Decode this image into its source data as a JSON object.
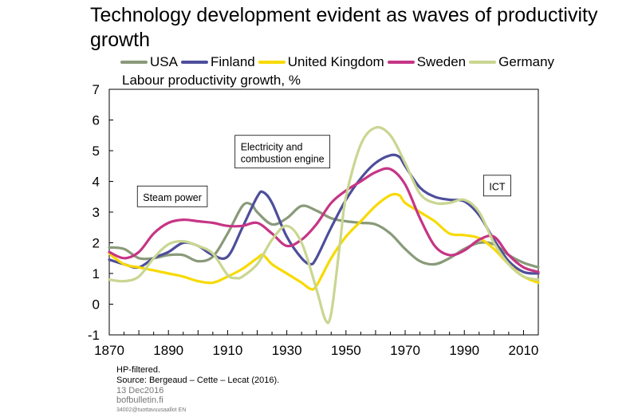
{
  "chart_data": {
    "type": "line",
    "title": "Technology development evident as waves of productivity growth",
    "ylabel": "Labour productivity growth, %",
    "xlabel": "",
    "xlim": [
      1870,
      2015
    ],
    "ylim": [
      -1,
      7
    ],
    "x_ticks": [
      1870,
      1890,
      1910,
      1930,
      1950,
      1970,
      1990,
      2010
    ],
    "y_ticks": [
      -1,
      0,
      1,
      2,
      3,
      4,
      5,
      6,
      7
    ],
    "grid": false,
    "legend_position": "top",
    "series": [
      {
        "name": "USA",
        "color": "#8a9a79",
        "points": [
          [
            1870,
            1.85
          ],
          [
            1875,
            1.8
          ],
          [
            1880,
            1.5
          ],
          [
            1885,
            1.5
          ],
          [
            1890,
            1.6
          ],
          [
            1895,
            1.6
          ],
          [
            1900,
            1.4
          ],
          [
            1905,
            1.55
          ],
          [
            1910,
            2.3
          ],
          [
            1915,
            3.2
          ],
          [
            1918,
            3.25
          ],
          [
            1920,
            3.0
          ],
          [
            1925,
            2.6
          ],
          [
            1930,
            2.8
          ],
          [
            1935,
            3.2
          ],
          [
            1940,
            3.05
          ],
          [
            1945,
            2.8
          ],
          [
            1950,
            2.7
          ],
          [
            1955,
            2.65
          ],
          [
            1960,
            2.6
          ],
          [
            1965,
            2.3
          ],
          [
            1970,
            1.8
          ],
          [
            1975,
            1.4
          ],
          [
            1980,
            1.3
          ],
          [
            1985,
            1.5
          ],
          [
            1990,
            1.8
          ],
          [
            1995,
            2.0
          ],
          [
            2000,
            1.95
          ],
          [
            2005,
            1.6
          ],
          [
            2010,
            1.35
          ],
          [
            2015,
            1.2
          ]
        ]
      },
      {
        "name": "Finland",
        "color": "#4d4e9a",
        "points": [
          [
            1870,
            1.45
          ],
          [
            1875,
            1.3
          ],
          [
            1880,
            1.2
          ],
          [
            1885,
            1.5
          ],
          [
            1890,
            1.7
          ],
          [
            1895,
            2.0
          ],
          [
            1900,
            1.9
          ],
          [
            1905,
            1.6
          ],
          [
            1910,
            1.55
          ],
          [
            1915,
            2.5
          ],
          [
            1920,
            3.5
          ],
          [
            1922,
            3.65
          ],
          [
            1925,
            3.3
          ],
          [
            1930,
            2.2
          ],
          [
            1935,
            1.5
          ],
          [
            1938,
            1.3
          ],
          [
            1940,
            1.5
          ],
          [
            1945,
            2.5
          ],
          [
            1950,
            3.4
          ],
          [
            1955,
            4.1
          ],
          [
            1960,
            4.6
          ],
          [
            1965,
            4.85
          ],
          [
            1968,
            4.8
          ],
          [
            1970,
            4.5
          ],
          [
            1975,
            3.8
          ],
          [
            1980,
            3.5
          ],
          [
            1985,
            3.4
          ],
          [
            1990,
            3.35
          ],
          [
            1995,
            2.9
          ],
          [
            2000,
            2.1
          ],
          [
            2005,
            1.4
          ],
          [
            2010,
            1.05
          ],
          [
            2015,
            1.0
          ]
        ]
      },
      {
        "name": "United Kingdom",
        "color": "#f7da00",
        "points": [
          [
            1870,
            1.65
          ],
          [
            1875,
            1.3
          ],
          [
            1880,
            1.2
          ],
          [
            1885,
            1.1
          ],
          [
            1890,
            1.0
          ],
          [
            1895,
            0.9
          ],
          [
            1900,
            0.75
          ],
          [
            1905,
            0.7
          ],
          [
            1910,
            0.9
          ],
          [
            1915,
            1.15
          ],
          [
            1920,
            1.5
          ],
          [
            1922,
            1.6
          ],
          [
            1925,
            1.3
          ],
          [
            1930,
            1.0
          ],
          [
            1935,
            0.7
          ],
          [
            1938,
            0.5
          ],
          [
            1940,
            0.6
          ],
          [
            1945,
            1.5
          ],
          [
            1950,
            2.2
          ],
          [
            1955,
            2.7
          ],
          [
            1960,
            3.2
          ],
          [
            1965,
            3.55
          ],
          [
            1968,
            3.55
          ],
          [
            1970,
            3.3
          ],
          [
            1975,
            3.0
          ],
          [
            1980,
            2.7
          ],
          [
            1985,
            2.3
          ],
          [
            1990,
            2.25
          ],
          [
            1995,
            2.15
          ],
          [
            2000,
            1.8
          ],
          [
            2005,
            1.3
          ],
          [
            2010,
            0.9
          ],
          [
            2015,
            0.7
          ]
        ]
      },
      {
        "name": "Sweden",
        "color": "#c63585",
        "points": [
          [
            1870,
            1.7
          ],
          [
            1875,
            1.5
          ],
          [
            1880,
            1.7
          ],
          [
            1885,
            2.3
          ],
          [
            1890,
            2.65
          ],
          [
            1895,
            2.75
          ],
          [
            1900,
            2.7
          ],
          [
            1905,
            2.65
          ],
          [
            1910,
            2.55
          ],
          [
            1915,
            2.55
          ],
          [
            1920,
            2.65
          ],
          [
            1925,
            2.3
          ],
          [
            1930,
            1.9
          ],
          [
            1935,
            2.1
          ],
          [
            1940,
            2.6
          ],
          [
            1945,
            3.3
          ],
          [
            1950,
            3.7
          ],
          [
            1955,
            4.0
          ],
          [
            1960,
            4.3
          ],
          [
            1965,
            4.4
          ],
          [
            1970,
            3.9
          ],
          [
            1975,
            2.8
          ],
          [
            1980,
            1.9
          ],
          [
            1985,
            1.6
          ],
          [
            1990,
            1.75
          ],
          [
            1995,
            2.1
          ],
          [
            2000,
            2.2
          ],
          [
            2005,
            1.6
          ],
          [
            2010,
            1.2
          ],
          [
            2015,
            1.05
          ]
        ]
      },
      {
        "name": "Germany",
        "color": "#c9d691",
        "points": [
          [
            1870,
            0.8
          ],
          [
            1875,
            0.75
          ],
          [
            1880,
            0.9
          ],
          [
            1885,
            1.5
          ],
          [
            1890,
            1.95
          ],
          [
            1895,
            2.05
          ],
          [
            1900,
            1.9
          ],
          [
            1905,
            1.65
          ],
          [
            1910,
            0.95
          ],
          [
            1913,
            0.85
          ],
          [
            1915,
            0.9
          ],
          [
            1920,
            1.3
          ],
          [
            1925,
            2.1
          ],
          [
            1930,
            2.55
          ],
          [
            1935,
            2.0
          ],
          [
            1940,
            0.5
          ],
          [
            1943,
            -0.5
          ],
          [
            1945,
            -0.3
          ],
          [
            1948,
            2.0
          ],
          [
            1950,
            3.5
          ],
          [
            1955,
            5.2
          ],
          [
            1960,
            5.75
          ],
          [
            1965,
            5.5
          ],
          [
            1970,
            4.6
          ],
          [
            1975,
            3.6
          ],
          [
            1980,
            3.3
          ],
          [
            1985,
            3.3
          ],
          [
            1990,
            3.4
          ],
          [
            1995,
            3.0
          ],
          [
            2000,
            2.0
          ],
          [
            2005,
            1.3
          ],
          [
            2010,
            0.9
          ],
          [
            2015,
            0.8
          ]
        ]
      }
    ],
    "annotations": [
      {
        "text": "Steam power",
        "x": 1879.5,
        "y": 3.85
      },
      {
        "text": "Electricity and\ncombustion engine",
        "x": 1912.5,
        "y": 5.5
      },
      {
        "text": "ICT",
        "x": 1996.5,
        "y": 4.2
      }
    ]
  },
  "footnotes": {
    "line1": "HP-filtered.",
    "line2": "Source: Bergeaud – Cette – Lecat (2016).",
    "date": "13 Dec2016",
    "site": "bofbulletin.fi",
    "code": "34002@tuottavuusaallot   EN"
  }
}
